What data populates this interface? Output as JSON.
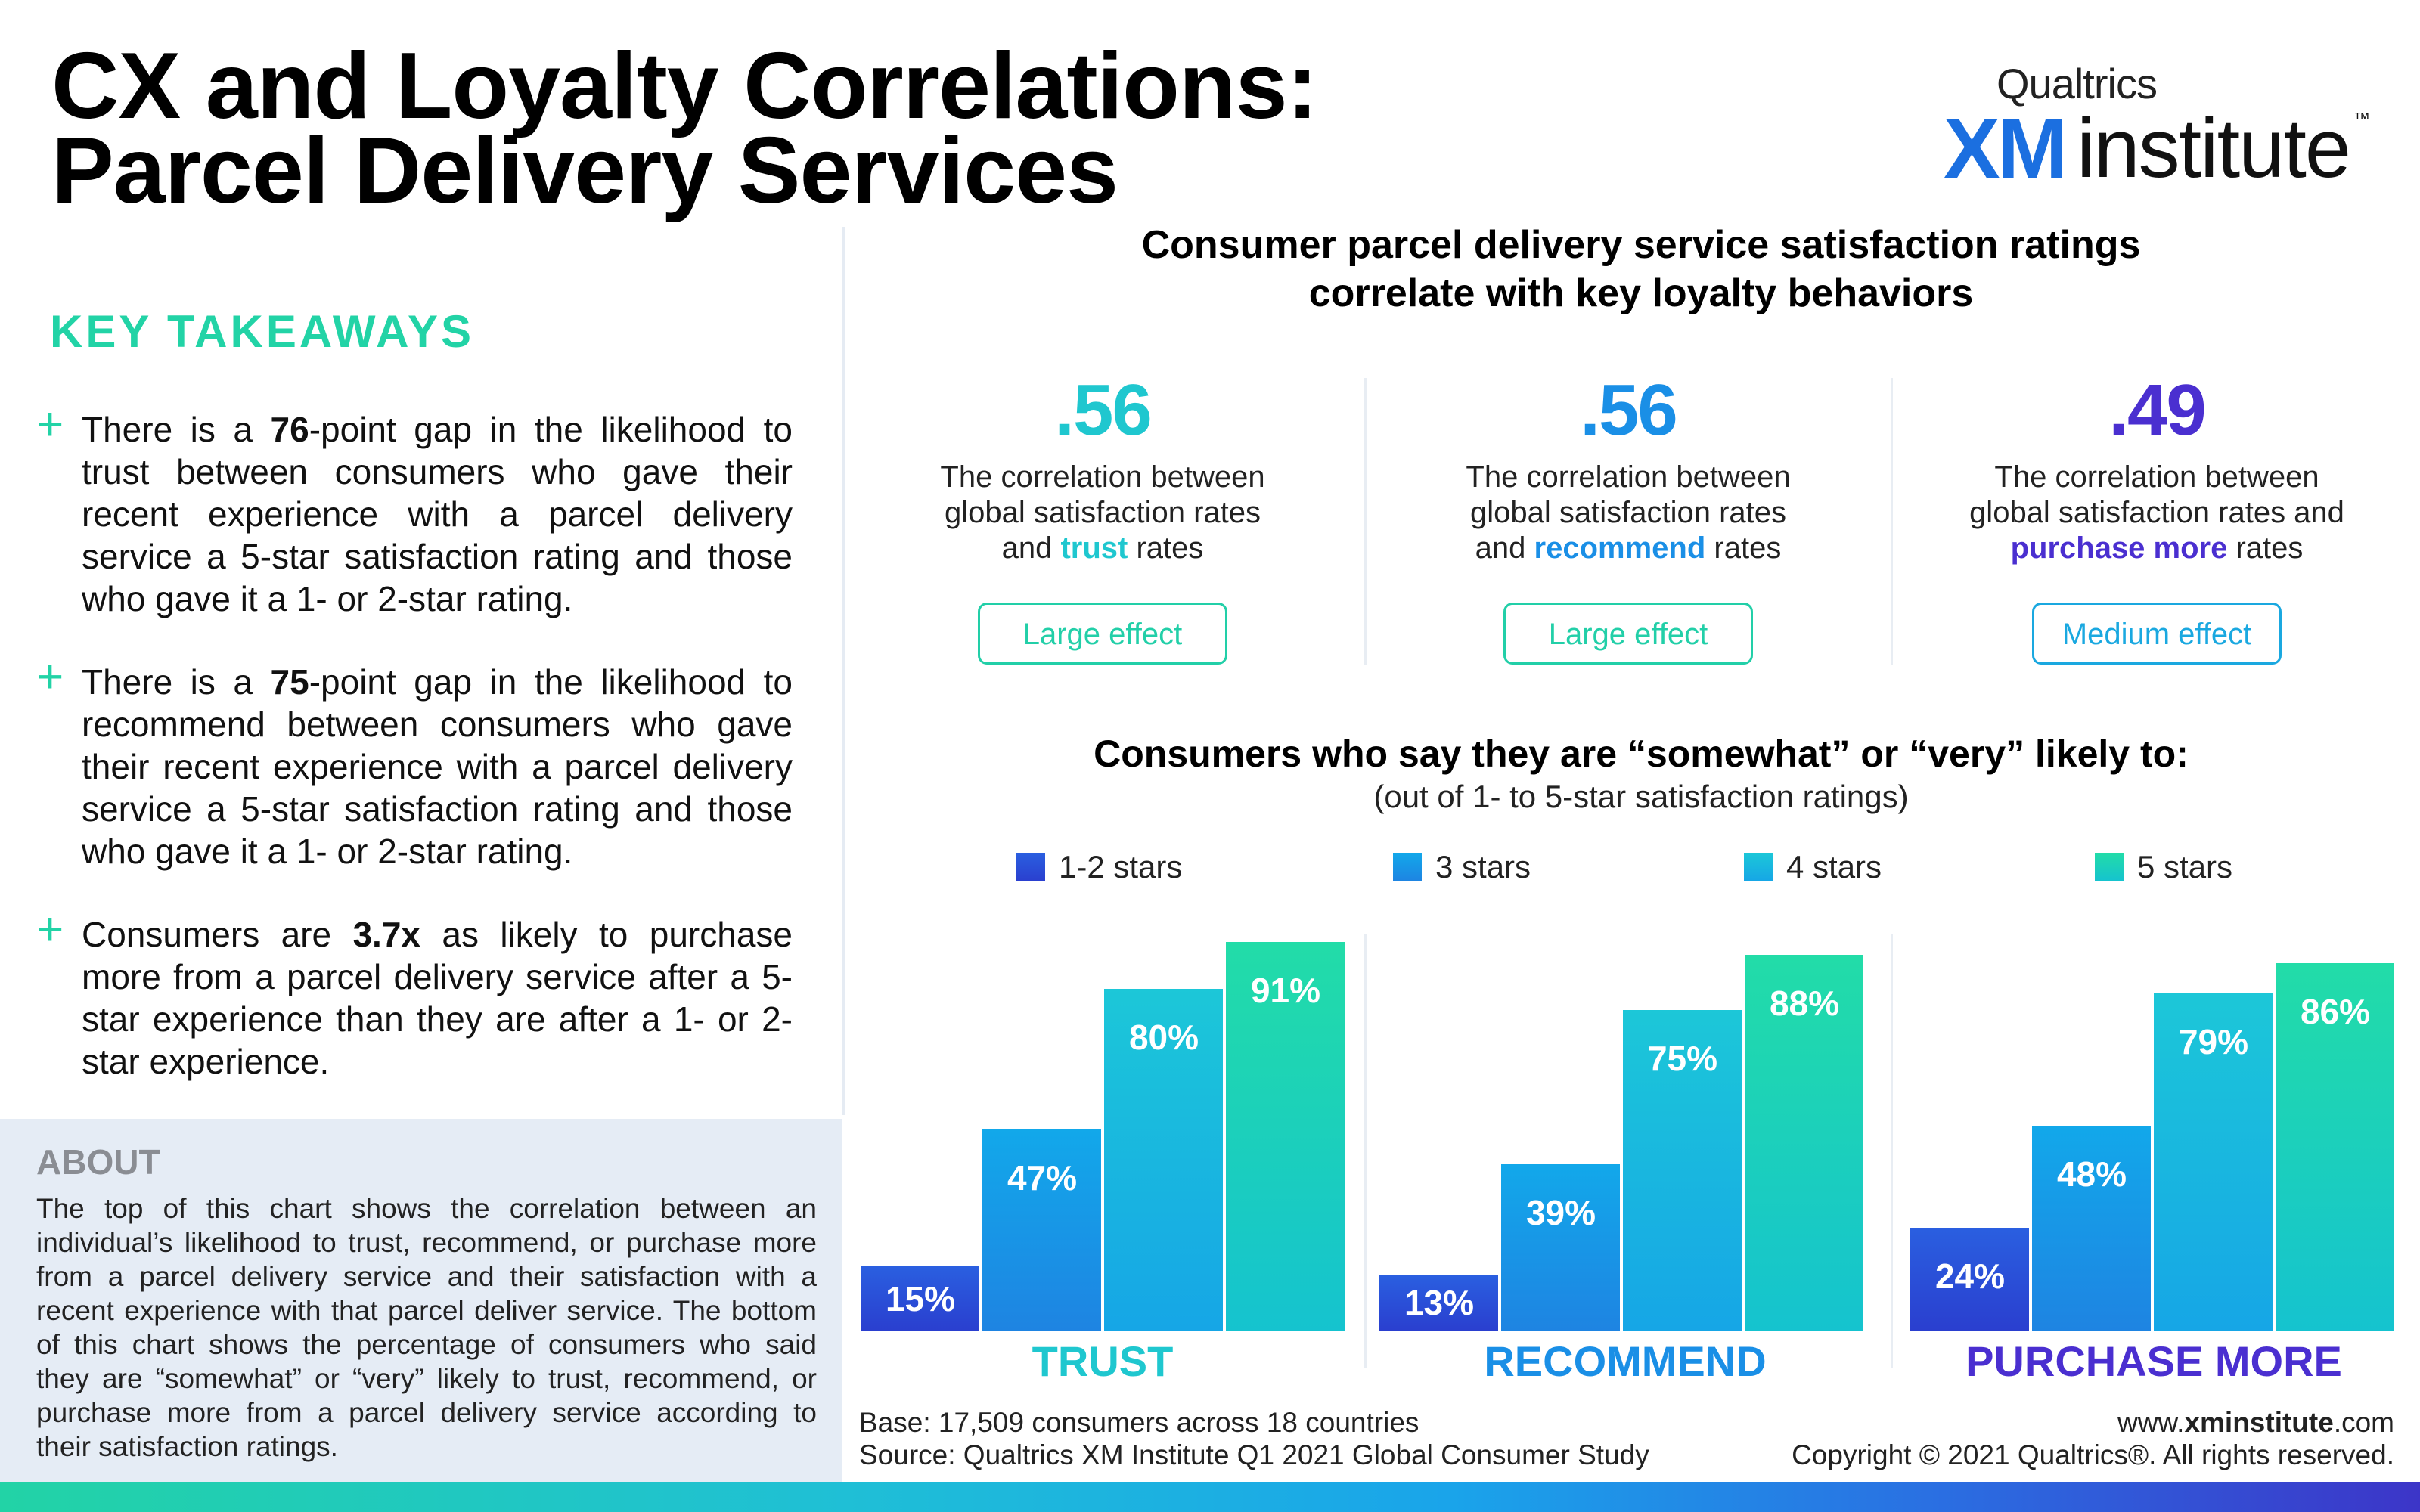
{
  "title": {
    "line1": "CX and Loyalty Correlations:",
    "line2": "Parcel Delivery Services"
  },
  "logo": {
    "company": "Qualtrics",
    "xm": "XM",
    "institute": "institute",
    "tm": "™"
  },
  "key_takeaways": {
    "heading": "KEY TAKEAWAYS",
    "items": [
      {
        "pre": "There is a ",
        "bold": "76",
        "post": "-point gap in the likelihood to trust between consumers who gave their recent experience with a parcel delivery service a 5-star satisfaction rating and those who gave it a 1- or 2-star rating."
      },
      {
        "pre": "There is a ",
        "bold": "75",
        "post": "-point gap in the likelihood to recommend between consumers who gave their recent experience with a parcel delivery service a 5-star satisfaction rating and those who gave it a 1- or 2-star rating."
      },
      {
        "pre": "Consumers are ",
        "bold": "3.7x",
        "post": " as likely to purchase more from a parcel delivery service after a 5-star experience than they are after a 1- or 2-star experience."
      }
    ]
  },
  "about": {
    "heading": "ABOUT",
    "body": "The top of this chart shows the correlation between an individual’s likelihood to trust, recommend, or purchase more from a parcel delivery service and their satisfaction with a recent experience with that parcel deliver service. The bottom of this chart shows the percentage of consumers who said they are “somewhat” or “very” likely to trust, recommend, or purchase more from a parcel delivery service according to their satisfaction ratings."
  },
  "chart_header": {
    "line1": "Consumer parcel delivery service satisfaction ratings",
    "line2": "correlate with key loyalty behaviors"
  },
  "correlations": [
    {
      "value": ".56",
      "pre": "The correlation between",
      "mid": "global satisfaction rates",
      "and": "and ",
      "keyword": "trust",
      "post": " rates",
      "effect": "Large effect",
      "color": "#1fc7cf",
      "effect_color": "#22cfa8"
    },
    {
      "value": ".56",
      "pre": "The correlation between",
      "mid": "global satisfaction rates",
      "and": "and ",
      "keyword": "recommend",
      "post": " rates",
      "effect": "Large effect",
      "color": "#1a8fe6",
      "effect_color": "#22cfa8"
    },
    {
      "value": ".49",
      "pre": "The correlation between",
      "mid": "global satisfaction rates and",
      "and": "",
      "keyword": "purchase more",
      "post": " rates",
      "effect": "Medium effect",
      "color": "#4a2fd0",
      "effect_color": "#1aa8e0"
    }
  ],
  "subchart": {
    "heading": "Consumers who say they are “somewhat” or “very” likely to:",
    "subheading": "(out of 1- to 5-star satisfaction ratings)"
  },
  "chart_data": {
    "type": "bar",
    "categories": [
      "TRUST",
      "RECOMMEND",
      "PURCHASE MORE"
    ],
    "series": [
      {
        "name": "1-2 stars",
        "values": [
          15,
          13,
          24
        ],
        "color_top": "#2a5fe0",
        "color_bottom": "#2a3fcf"
      },
      {
        "name": "3 stars",
        "values": [
          47,
          39,
          48
        ],
        "color_top": "#12a8ea",
        "color_bottom": "#1e84e2"
      },
      {
        "name": "4 stars",
        "values": [
          80,
          75,
          79
        ],
        "color_top": "#1cc7d8",
        "color_bottom": "#16a6e6"
      },
      {
        "name": "5 stars",
        "values": [
          91,
          88,
          86
        ],
        "color_top": "#22dca8",
        "color_bottom": "#15c3cf"
      }
    ],
    "value_labels": [
      [
        "15%",
        "13%",
        "24%"
      ],
      [
        "47%",
        "39%",
        "48%"
      ],
      [
        "80%",
        "75%",
        "79%"
      ],
      [
        "91%",
        "88%",
        "86%"
      ]
    ],
    "ylim": [
      0,
      100
    ],
    "category_colors": [
      "#1fc7cf",
      "#1a8fe6",
      "#4a2fd0"
    ],
    "legend": "top"
  },
  "footer": {
    "base": "Base: 17,509 consumers across 18 countries",
    "source": "Source: Qualtrics XM Institute Q1 2021 Global Consumer Study",
    "url_pre": "www.",
    "url_bold": "xminstitute",
    "url_post": ".com",
    "copyright": "Copyright © 2021 Qualtrics®. All rights reserved."
  }
}
